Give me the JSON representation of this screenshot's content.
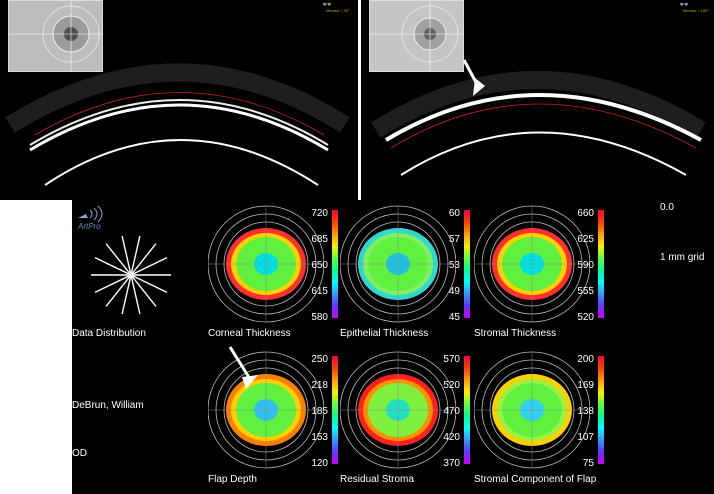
{
  "scans": {
    "left_median": "Median = 90°",
    "right_median": "Median = 180°"
  },
  "panel": {
    "app_logo": "ArtPro",
    "scale_value": "0.0",
    "grid_label": "1 mm grid",
    "data_distribution": "Data Distribution",
    "patient_name": "DeBrun, William",
    "eye": "OD"
  },
  "maps": [
    {
      "label": "Corneal Thickness",
      "ticks": [
        "720",
        "685",
        "650",
        "615",
        "580"
      ],
      "colors": {
        "outer": "#ff3030",
        "ring": "#ffd000",
        "mid": "#60f040",
        "center": "#00e0e0"
      }
    },
    {
      "label": "Epithelial Thickness",
      "ticks": [
        "60",
        "57",
        "53",
        "49",
        "45"
      ],
      "colors": {
        "outer": "#30d8d0",
        "ring": "#80f060",
        "mid": "#60f040",
        "center": "#20c0e0"
      }
    },
    {
      "label": "Stromal Thickness",
      "ticks": [
        "660",
        "625",
        "590",
        "555",
        "520"
      ],
      "colors": {
        "outer": "#ff3030",
        "ring": "#ffd000",
        "mid": "#60f040",
        "center": "#00e0e0"
      }
    },
    {
      "label": "Flap Depth",
      "ticks": [
        "250",
        "218",
        "185",
        "153",
        "120"
      ],
      "colors": {
        "outer": "#ff8000",
        "ring": "#ffd000",
        "mid": "#60f040",
        "center": "#30c0f0"
      }
    },
    {
      "label": "Residual Stroma",
      "ticks": [
        "570",
        "520",
        "470",
        "420",
        "370"
      ],
      "colors": {
        "outer": "#ff2020",
        "ring": "#ff9000",
        "mid": "#80f040",
        "center": "#20e0c0"
      }
    },
    {
      "label": "Stromal Component of Flap",
      "ticks": [
        "200",
        "169",
        "138",
        "107",
        "75"
      ],
      "colors": {
        "outer": "#ffd000",
        "ring": "#a0f040",
        "mid": "#60f040",
        "center": "#30d0f0"
      }
    }
  ]
}
